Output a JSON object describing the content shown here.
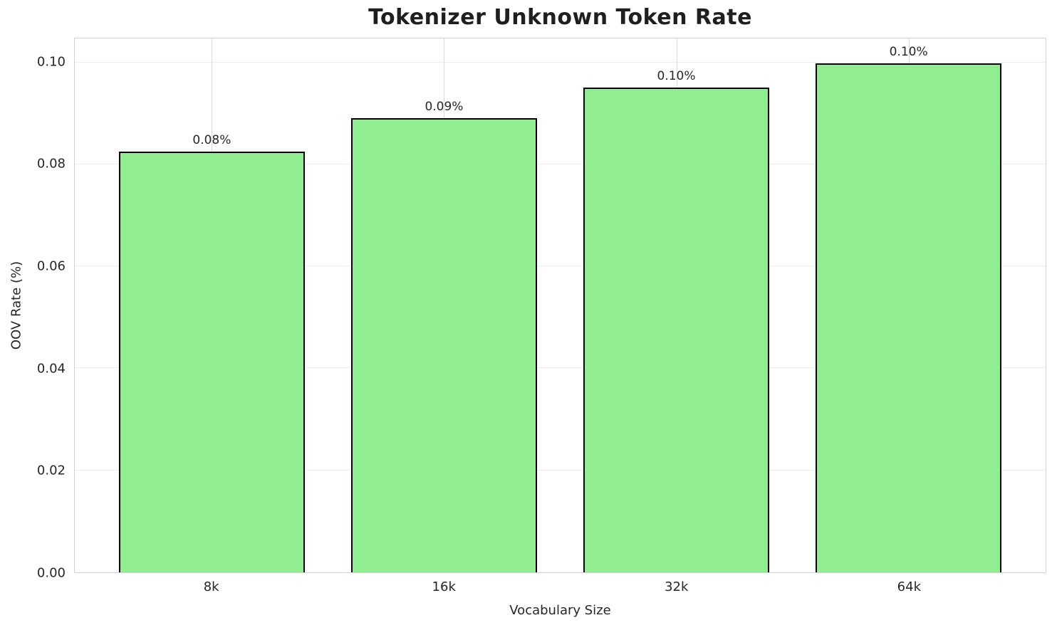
{
  "chart_data": {
    "type": "bar",
    "title": "Tokenizer Unknown Token Rate",
    "xlabel": "Vocabulary Size",
    "ylabel": "OOV Rate (%)",
    "categories": [
      "8k",
      "16k",
      "32k",
      "64k"
    ],
    "values": [
      0.0825,
      0.089,
      0.095,
      0.0998
    ],
    "bar_labels": [
      "0.08%",
      "0.09%",
      "0.10%",
      "0.10%"
    ],
    "yticks": [
      "0.00",
      "0.02",
      "0.04",
      "0.06",
      "0.08",
      "0.10"
    ],
    "ytick_values": [
      0.0,
      0.02,
      0.04,
      0.06,
      0.08,
      0.1
    ],
    "ylim": [
      0,
      0.1047
    ],
    "xlim": [
      -0.59,
      3.59
    ],
    "bar_width_units": 0.8,
    "grid": true,
    "legend": "none",
    "colors": {
      "bar_fill": "#90EE90",
      "bar_edge": "#000000",
      "hgrid": "#ededed",
      "vgrid": "#d9d9d9",
      "spine": "#d2d2d2",
      "text": "#262626",
      "title": "#1f1f1f",
      "background": "#ffffff"
    }
  }
}
